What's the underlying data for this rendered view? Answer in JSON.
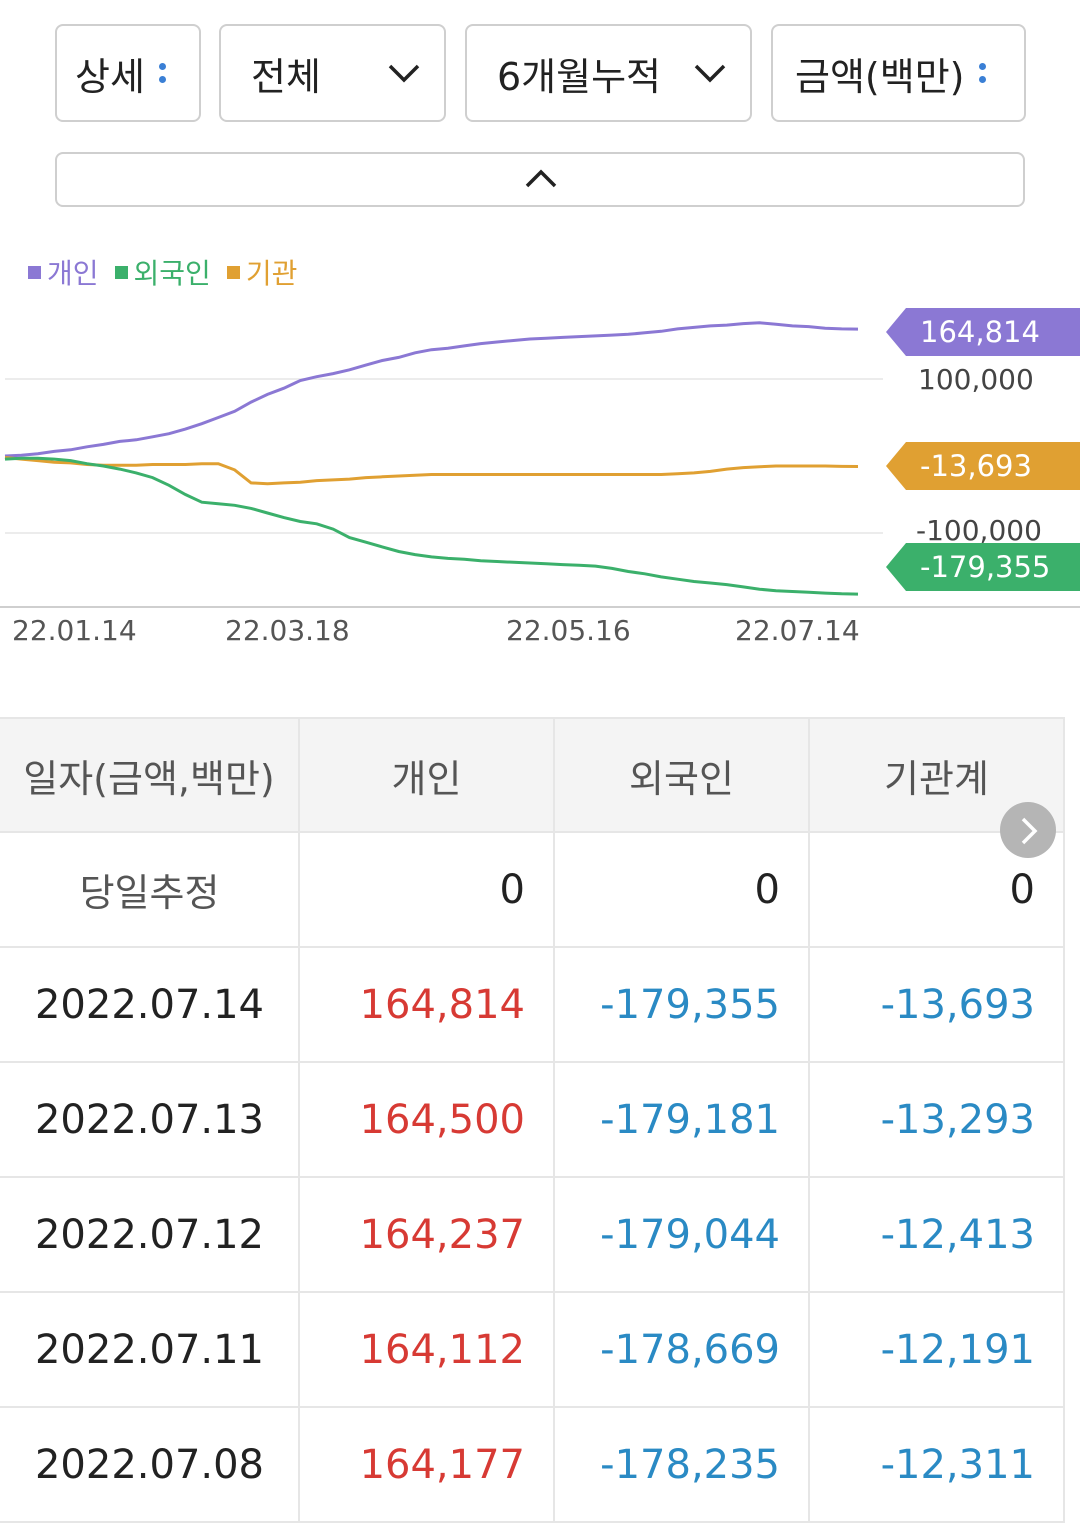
{
  "filters": {
    "detail": "상세",
    "scope": "전체",
    "period": "6개월누적",
    "unit": "금액(백만)"
  },
  "legend": [
    {
      "name": "개인",
      "color": "#8b78d4"
    },
    {
      "name": "외국인",
      "color": "#3bb06b"
    },
    {
      "name": "기관",
      "color": "#e0a032"
    }
  ],
  "chart_data": {
    "type": "line",
    "x_ticks": [
      "22.01.14",
      "22.03.18",
      "22.05.16",
      "22.07.14"
    ],
    "y_ticks": [
      "100,000",
      "-100,000"
    ],
    "ylim": [
      -200000,
      200000
    ],
    "series": [
      {
        "name": "개인",
        "color": "#8b78d4",
        "last_label": "164,814",
        "values": [
          0,
          1000,
          3000,
          6000,
          8000,
          12000,
          15000,
          19000,
          21000,
          25000,
          29000,
          35000,
          42000,
          50000,
          58000,
          70000,
          80000,
          88000,
          98000,
          103000,
          107000,
          112000,
          118000,
          124000,
          128000,
          134000,
          138000,
          140000,
          143000,
          146000,
          148000,
          150000,
          152000,
          153000,
          154000,
          155000,
          156000,
          157000,
          158000,
          160000,
          162000,
          165000,
          167000,
          169000,
          170000,
          172000,
          173000,
          171000,
          169000,
          168000,
          166000,
          165000,
          164814
        ]
      },
      {
        "name": "외국인",
        "color": "#3bb06b",
        "last_label": "-179,355",
        "values": [
          -4000,
          -3000,
          -3000,
          -4000,
          -6000,
          -10000,
          -13000,
          -17000,
          -22000,
          -28000,
          -38000,
          -50000,
          -60000,
          -62000,
          -64000,
          -68000,
          -74000,
          -80000,
          -85000,
          -88000,
          -95000,
          -106000,
          -112000,
          -118000,
          -124000,
          -128000,
          -131000,
          -133000,
          -134000,
          -136000,
          -137000,
          -138000,
          -139000,
          -140000,
          -141000,
          -142000,
          -143000,
          -146000,
          -150000,
          -153000,
          -157000,
          -160000,
          -163000,
          -165000,
          -167000,
          -170000,
          -173000,
          -175000,
          -176000,
          -177000,
          -178000,
          -179000,
          -179355
        ]
      },
      {
        "name": "기관",
        "color": "#e0a032",
        "last_label": "-13,693",
        "values": [
          -2000,
          -4000,
          -6000,
          -8000,
          -9000,
          -11000,
          -12000,
          -12000,
          -12000,
          -11000,
          -11000,
          -11000,
          -10000,
          -10000,
          -18000,
          -35000,
          -36000,
          -35000,
          -34000,
          -32000,
          -31000,
          -30000,
          -28000,
          -27000,
          -26000,
          -25000,
          -24000,
          -24000,
          -24000,
          -24000,
          -24000,
          -24000,
          -24000,
          -24000,
          -24000,
          -24000,
          -24000,
          -24000,
          -24000,
          -24000,
          -24000,
          -23000,
          -22000,
          -20000,
          -17000,
          -15000,
          -14000,
          -13000,
          -13000,
          -13000,
          -13000,
          -13500,
          -13693
        ]
      }
    ]
  },
  "table": {
    "headers": [
      "일자(금액,백만)",
      "개인",
      "외국인",
      "기관계"
    ],
    "estimate": {
      "label": "당일추정",
      "values": [
        "0",
        "0",
        "0"
      ]
    },
    "rows": [
      {
        "date": "2022.07.14",
        "personal": "164,814",
        "foreign": "-179,355",
        "institution": "-13,693"
      },
      {
        "date": "2022.07.13",
        "personal": "164,500",
        "foreign": "-179,181",
        "institution": "-13,293"
      },
      {
        "date": "2022.07.12",
        "personal": "164,237",
        "foreign": "-179,044",
        "institution": "-12,413"
      },
      {
        "date": "2022.07.11",
        "personal": "164,112",
        "foreign": "-178,669",
        "institution": "-12,191"
      },
      {
        "date": "2022.07.08",
        "personal": "164,177",
        "foreign": "-178,235",
        "institution": "-12,311"
      }
    ]
  }
}
